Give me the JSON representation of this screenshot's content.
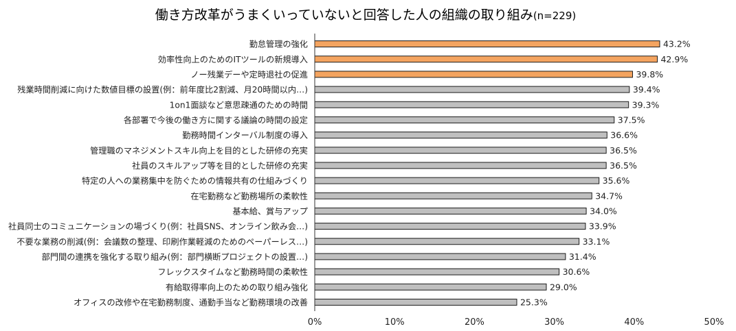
{
  "chart_data": {
    "type": "bar",
    "orientation": "horizontal",
    "title": "働き方改革がうまくいっていないと回答した人の組織の取り組み",
    "subtitle": "(n=229)",
    "categories": [
      "勤怠管理の強化",
      "効率性向上のためのITツールの新規導入",
      "ノー残業デーや定時退社の促進",
      "残業時間削減に向けた数値目標の設置(例：前年度比2割減、月20時間以内…)",
      "1on1面談など意思疎通のための時間",
      "各部署で今後の働き方に関する議論の時間の設定",
      "勤務時間インターバル制度の導入",
      "管理職のマネジメントスキル向上を目的とした研修の充実",
      "社員のスキルアップ等を目的とした研修の充実",
      "特定の人への業務集中を防ぐための情報共有の仕組みづくり",
      "在宅勤務など勤務場所の柔軟性",
      "基本給、賞与アップ",
      "社員同士のコミュニケーションの場づくり(例：社員SNS、オンライン飲み会…)",
      "不要な業務の削減(例：会議数の整理、印刷作業軽減のためのペーパーレス…)",
      "部門間の連携を強化する取り組み(例：部門横断プロジェクトの設置…)",
      "フレックスタイムなど勤務時間の柔軟性",
      "有給取得率向上のための取り組み強化",
      "オフィスの改修や在宅勤務制度、通勤手当など勤務環境の改善"
    ],
    "values": [
      43.2,
      42.9,
      39.8,
      39.4,
      39.3,
      37.5,
      36.6,
      36.5,
      36.5,
      35.6,
      34.7,
      34.0,
      33.9,
      33.1,
      31.4,
      30.6,
      29.0,
      25.3
    ],
    "value_labels": [
      "43.2%",
      "42.9%",
      "39.8%",
      "39.4%",
      "39.3%",
      "37.5%",
      "36.6%",
      "36.5%",
      "36.5%",
      "35.6%",
      "34.7%",
      "34.0%",
      "33.9%",
      "33.1%",
      "31.4%",
      "30.6%",
      "29.0%",
      "25.3%"
    ],
    "highlighted_count": 3,
    "xlim": [
      0,
      50
    ],
    "xticks": [
      "0%",
      "10%",
      "20%",
      "30%",
      "40%",
      "50%"
    ],
    "grid": false,
    "legend": "none",
    "colors": {
      "highlight": "#F4A460",
      "default": "#BFBFBF",
      "bar_outline": "#1a1a1a",
      "axis": "#333333"
    }
  }
}
